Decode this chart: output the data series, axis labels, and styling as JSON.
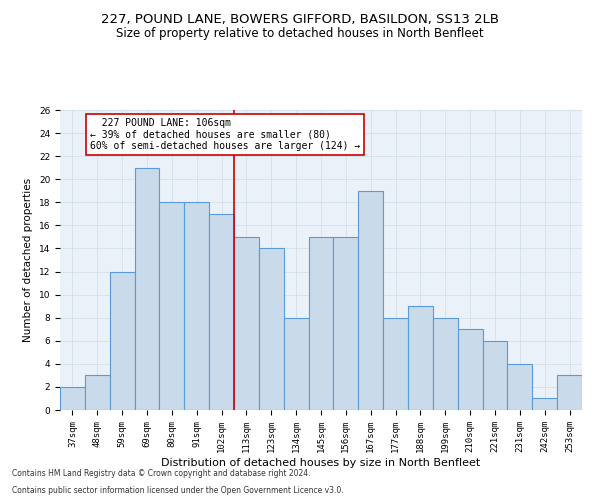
{
  "title1": "227, POUND LANE, BOWERS GIFFORD, BASILDON, SS13 2LB",
  "title2": "Size of property relative to detached houses in North Benfleet",
  "xlabel": "Distribution of detached houses by size in North Benfleet",
  "ylabel": "Number of detached properties",
  "footnote1": "Contains HM Land Registry data © Crown copyright and database right 2024.",
  "footnote2": "Contains public sector information licensed under the Open Government Licence v3.0.",
  "categories": [
    "37sqm",
    "48sqm",
    "59sqm",
    "69sqm",
    "80sqm",
    "91sqm",
    "102sqm",
    "113sqm",
    "123sqm",
    "134sqm",
    "145sqm",
    "156sqm",
    "167sqm",
    "177sqm",
    "188sqm",
    "199sqm",
    "210sqm",
    "221sqm",
    "231sqm",
    "242sqm",
    "253sqm"
  ],
  "values": [
    2,
    3,
    12,
    21,
    18,
    18,
    17,
    15,
    14,
    8,
    15,
    15,
    19,
    8,
    9,
    8,
    7,
    6,
    4,
    1,
    3
  ],
  "bar_color": "#c9daea",
  "bar_edge_color": "#5b9bd5",
  "vline_x": 6.5,
  "vline_color": "#cc0000",
  "annotation_text": "  227 POUND LANE: 106sqm\n← 39% of detached houses are smaller (80)\n60% of semi-detached houses are larger (124) →",
  "annotation_box_color": "#ffffff",
  "annotation_box_edge": "#cc0000",
  "ylim": [
    0,
    26
  ],
  "yticks": [
    0,
    2,
    4,
    6,
    8,
    10,
    12,
    14,
    16,
    18,
    20,
    22,
    24,
    26
  ],
  "grid_color": "#d0dce8",
  "bg_color": "#eaf1f8",
  "title1_fontsize": 9.5,
  "title2_fontsize": 8.5,
  "xlabel_fontsize": 8,
  "ylabel_fontsize": 7.5,
  "tick_fontsize": 6.5,
  "annot_fontsize": 7,
  "footnote_fontsize": 5.5
}
